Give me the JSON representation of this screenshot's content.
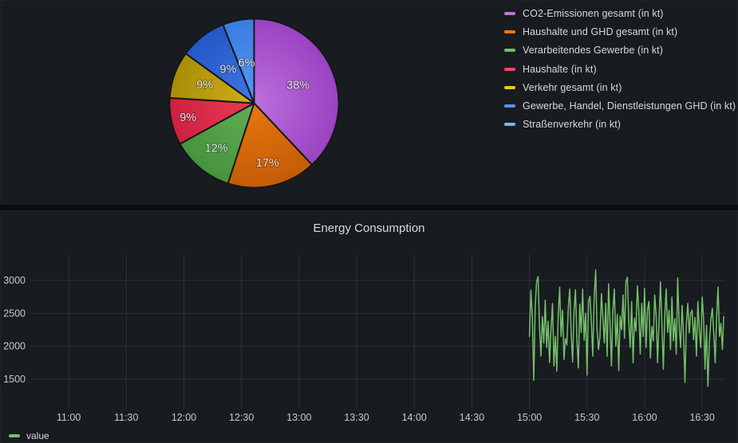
{
  "theme": {
    "page_background": "#0c0d10",
    "panel_background": "#181b1f",
    "panel_border": "#1f2227",
    "text_primary": "#d8d9da",
    "axis_text": "#c8c9cd",
    "grid_line": "rgba(204,204,220,0.12)",
    "pie_gap_stroke": "#15171a",
    "pie_label_color": "#e2e3e5"
  },
  "chart_data": [
    {
      "type": "pie",
      "title": "",
      "categories": [
        "CO2-Emissionen gesamt (in kt)",
        "Haushalte und GHD gesamt (in kt)",
        "Verarbeitendes Gewerbe (in kt)",
        "Haushalte (in kt)",
        "Verkehr gesamt (in kt)",
        "Gewerbe, Handel, Dienstleistungen GHD (in kt)",
        "Straßenverkehr (in kt)"
      ],
      "values": [
        38,
        17,
        12,
        9,
        9,
        9,
        6
      ],
      "labels": [
        "38%",
        "17%",
        "12%",
        "9%",
        "9%",
        "9%",
        "6%"
      ],
      "unit": "percent",
      "start_angle": "top",
      "direction": "clockwise",
      "legend_position": "right",
      "slice_colors_center": [
        "#bd6fdd",
        "#e8770f",
        "#62ae56",
        "#ea3a54",
        "#d1b117",
        "#3f78e8",
        "#549af7"
      ],
      "slice_colors_edge": [
        "#9a43c2",
        "#c45b06",
        "#47923d",
        "#ce2140",
        "#a78c07",
        "#2357c4",
        "#3b7ce0"
      ],
      "legend_swatch_colors": [
        "#B877D9",
        "#FF780A",
        "#73BF69",
        "#F2495C",
        "#F2CC0C",
        "#5794F2",
        "#7EB2F7"
      ]
    },
    {
      "type": "line",
      "title": "Energy Consumption",
      "xlabel": "",
      "ylabel": "",
      "grid": true,
      "legend_position": "bottom-left",
      "x_axis": {
        "tick_labels": [
          "11:00",
          "11:30",
          "12:00",
          "12:30",
          "13:00",
          "13:30",
          "14:00",
          "14:30",
          "15:00",
          "15:30",
          "16:00",
          "16:30"
        ],
        "tick_minutes": [
          660,
          690,
          720,
          750,
          780,
          810,
          840,
          870,
          900,
          930,
          960,
          990
        ],
        "range_minutes": [
          640,
          1002
        ]
      },
      "y_axis": {
        "tick_labels": [
          "1500",
          "2000",
          "2500",
          "3000"
        ],
        "tick_values": [
          1500,
          2000,
          2500,
          3000
        ],
        "ylim": [
          1050,
          3400
        ]
      },
      "series": [
        {
          "name": "value",
          "color": "#73BF69",
          "start_minute": 900,
          "step_minutes": 0.75,
          "values": [
            2150,
            2850,
            2450,
            1480,
            2600,
            2980,
            3060,
            2300,
            1850,
            2450,
            2050,
            2700,
            1980,
            2380,
            1750,
            2250,
            2650,
            1700,
            2150,
            1620,
            2480,
            2900,
            2150,
            2550,
            1800,
            2120,
            2020,
            2580,
            2870,
            2200,
            1760,
            2540,
            2860,
            2110,
            1670,
            2640,
            2210,
            2870,
            2090,
            2500,
            1560,
            2680,
            2760,
            2360,
            1850,
            2750,
            3160,
            2250,
            1950,
            2150,
            2800,
            2450,
            2050,
            2650,
            1850,
            2950,
            2350,
            1700,
            2550,
            2870,
            2000,
            2480,
            1630,
            2460,
            2250,
            2780,
            2120,
            2980,
            3050,
            2380,
            1980,
            2680,
            1750,
            2430,
            2230,
            2920,
            2540,
            1880,
            2650,
            2150,
            2880,
            1980,
            2560,
            2680,
            1820,
            2300,
            2080,
            2780,
            2470,
            1750,
            2380,
            2980,
            2340,
            1650,
            2460,
            2870,
            2210,
            2550,
            1950,
            2750,
            2080,
            2420,
            1880,
            3040,
            2300,
            1980,
            2620,
            2180,
            1450,
            2350,
            2650,
            2200,
            2500,
            2550,
            2100,
            2440,
            1850,
            2680,
            2250,
            1980,
            2750,
            2420,
            1650,
            2320,
            1390,
            2050,
            2400,
            2580,
            2200,
            1750,
            2450,
            2900,
            2150,
            2350,
            1950,
            2450
          ]
        }
      ]
    }
  ]
}
